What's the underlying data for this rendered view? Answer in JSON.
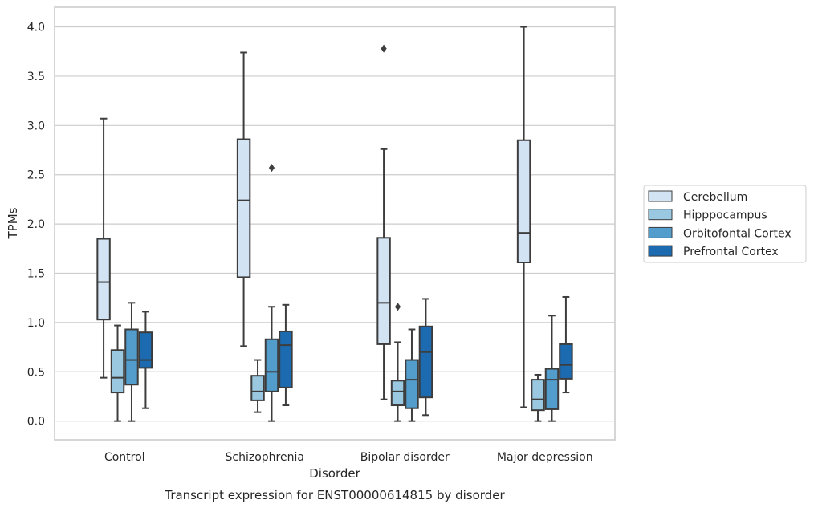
{
  "chart_data": {
    "type": "box",
    "title": "Transcript expression for ENST00000614815 by disorder",
    "xlabel": "Disorder",
    "ylabel": "TPMs",
    "ylim": [
      -0.19,
      4.2
    ],
    "yticks": [
      0.0,
      0.5,
      1.0,
      1.5,
      2.0,
      2.5,
      3.0,
      3.5,
      4.0
    ],
    "ytick_labels": [
      "0.0",
      "0.5",
      "1.0",
      "1.5",
      "2.0",
      "2.5",
      "3.0",
      "3.5",
      "4.0"
    ],
    "categories": [
      "Control",
      "Schizophrenia",
      "Bipolar disorder",
      "Major depression"
    ],
    "grid": "horizontal",
    "legend_position": "right",
    "series": [
      {
        "name": "Cerebellum",
        "color": "#d2e3f3",
        "boxes": [
          {
            "whisker_low": 0.44,
            "q1": 1.03,
            "median": 1.41,
            "q3": 1.85,
            "whisker_high": 3.07,
            "outliers": []
          },
          {
            "whisker_low": 0.76,
            "q1": 1.46,
            "median": 2.24,
            "q3": 2.86,
            "whisker_high": 3.74,
            "outliers": []
          },
          {
            "whisker_low": 0.22,
            "q1": 0.78,
            "median": 1.2,
            "q3": 1.86,
            "whisker_high": 2.76,
            "outliers": [
              3.78
            ]
          },
          {
            "whisker_low": 0.14,
            "q1": 1.61,
            "median": 1.91,
            "q3": 2.85,
            "whisker_high": 4.0,
            "outliers": []
          }
        ]
      },
      {
        "name": "Hipppocampus",
        "color": "#9ac8e0",
        "boxes": [
          {
            "whisker_low": 0.0,
            "q1": 0.29,
            "median": 0.44,
            "q3": 0.72,
            "whisker_high": 0.97,
            "outliers": []
          },
          {
            "whisker_low": 0.09,
            "q1": 0.21,
            "median": 0.3,
            "q3": 0.46,
            "whisker_high": 0.62,
            "outliers": []
          },
          {
            "whisker_low": 0.0,
            "q1": 0.16,
            "median": 0.3,
            "q3": 0.41,
            "whisker_high": 0.8,
            "outliers": [
              1.16
            ]
          },
          {
            "whisker_low": 0.0,
            "q1": 0.11,
            "median": 0.22,
            "q3": 0.42,
            "whisker_high": 0.47,
            "outliers": []
          }
        ]
      },
      {
        "name": "Orbitofontal Cortex",
        "color": "#529dcc",
        "boxes": [
          {
            "whisker_low": 0.0,
            "q1": 0.37,
            "median": 0.62,
            "q3": 0.93,
            "whisker_high": 1.2,
            "outliers": []
          },
          {
            "whisker_low": 0.0,
            "q1": 0.3,
            "median": 0.5,
            "q3": 0.83,
            "whisker_high": 1.16,
            "outliers": [
              2.57
            ]
          },
          {
            "whisker_low": 0.0,
            "q1": 0.13,
            "median": 0.42,
            "q3": 0.62,
            "whisker_high": 0.93,
            "outliers": []
          },
          {
            "whisker_low": 0.0,
            "q1": 0.12,
            "median": 0.42,
            "q3": 0.53,
            "whisker_high": 1.07,
            "outliers": []
          }
        ]
      },
      {
        "name": "Prefrontal Cortex",
        "color": "#1c6aaf",
        "boxes": [
          {
            "whisker_low": 0.13,
            "q1": 0.54,
            "median": 0.62,
            "q3": 0.9,
            "whisker_high": 1.11,
            "outliers": []
          },
          {
            "whisker_low": 0.16,
            "q1": 0.34,
            "median": 0.77,
            "q3": 0.91,
            "whisker_high": 1.18,
            "outliers": []
          },
          {
            "whisker_low": 0.06,
            "q1": 0.24,
            "median": 0.7,
            "q3": 0.96,
            "whisker_high": 1.24,
            "outliers": []
          },
          {
            "whisker_low": 0.29,
            "q1": 0.43,
            "median": 0.57,
            "q3": 0.78,
            "whisker_high": 1.26,
            "outliers": []
          }
        ]
      }
    ]
  }
}
